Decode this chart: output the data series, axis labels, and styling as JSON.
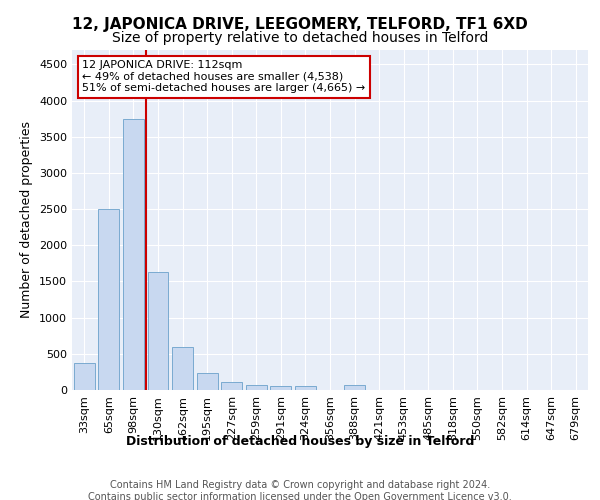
{
  "title1": "12, JAPONICA DRIVE, LEEGOMERY, TELFORD, TF1 6XD",
  "title2": "Size of property relative to detached houses in Telford",
  "xlabel": "Distribution of detached houses by size in Telford",
  "ylabel": "Number of detached properties",
  "categories": [
    "33sqm",
    "65sqm",
    "98sqm",
    "130sqm",
    "162sqm",
    "195sqm",
    "227sqm",
    "259sqm",
    "291sqm",
    "324sqm",
    "356sqm",
    "388sqm",
    "421sqm",
    "453sqm",
    "485sqm",
    "518sqm",
    "550sqm",
    "582sqm",
    "614sqm",
    "647sqm",
    "679sqm"
  ],
  "values": [
    380,
    2500,
    3750,
    1630,
    590,
    240,
    110,
    65,
    55,
    55,
    0,
    65,
    0,
    0,
    0,
    0,
    0,
    0,
    0,
    0,
    0
  ],
  "bar_color": "#c8d8f0",
  "bar_edge_color": "#7aaad0",
  "vline_color": "#cc0000",
  "vline_x": 2.5,
  "annotation_text": "12 JAPONICA DRIVE: 112sqm\n← 49% of detached houses are smaller (4,538)\n51% of semi-detached houses are larger (4,665) →",
  "annotation_box_color": "#ffffff",
  "annotation_box_edge": "#cc0000",
  "ylim": [
    0,
    4700
  ],
  "yticks": [
    0,
    500,
    1000,
    1500,
    2000,
    2500,
    3000,
    3500,
    4000,
    4500
  ],
  "plot_bg_color": "#e8eef8",
  "footer_text": "Contains HM Land Registry data © Crown copyright and database right 2024.\nContains public sector information licensed under the Open Government Licence v3.0.",
  "title1_fontsize": 11,
  "title2_fontsize": 10,
  "xlabel_fontsize": 9,
  "ylabel_fontsize": 9,
  "tick_fontsize": 8,
  "annotation_fontsize": 8,
  "footer_fontsize": 7
}
